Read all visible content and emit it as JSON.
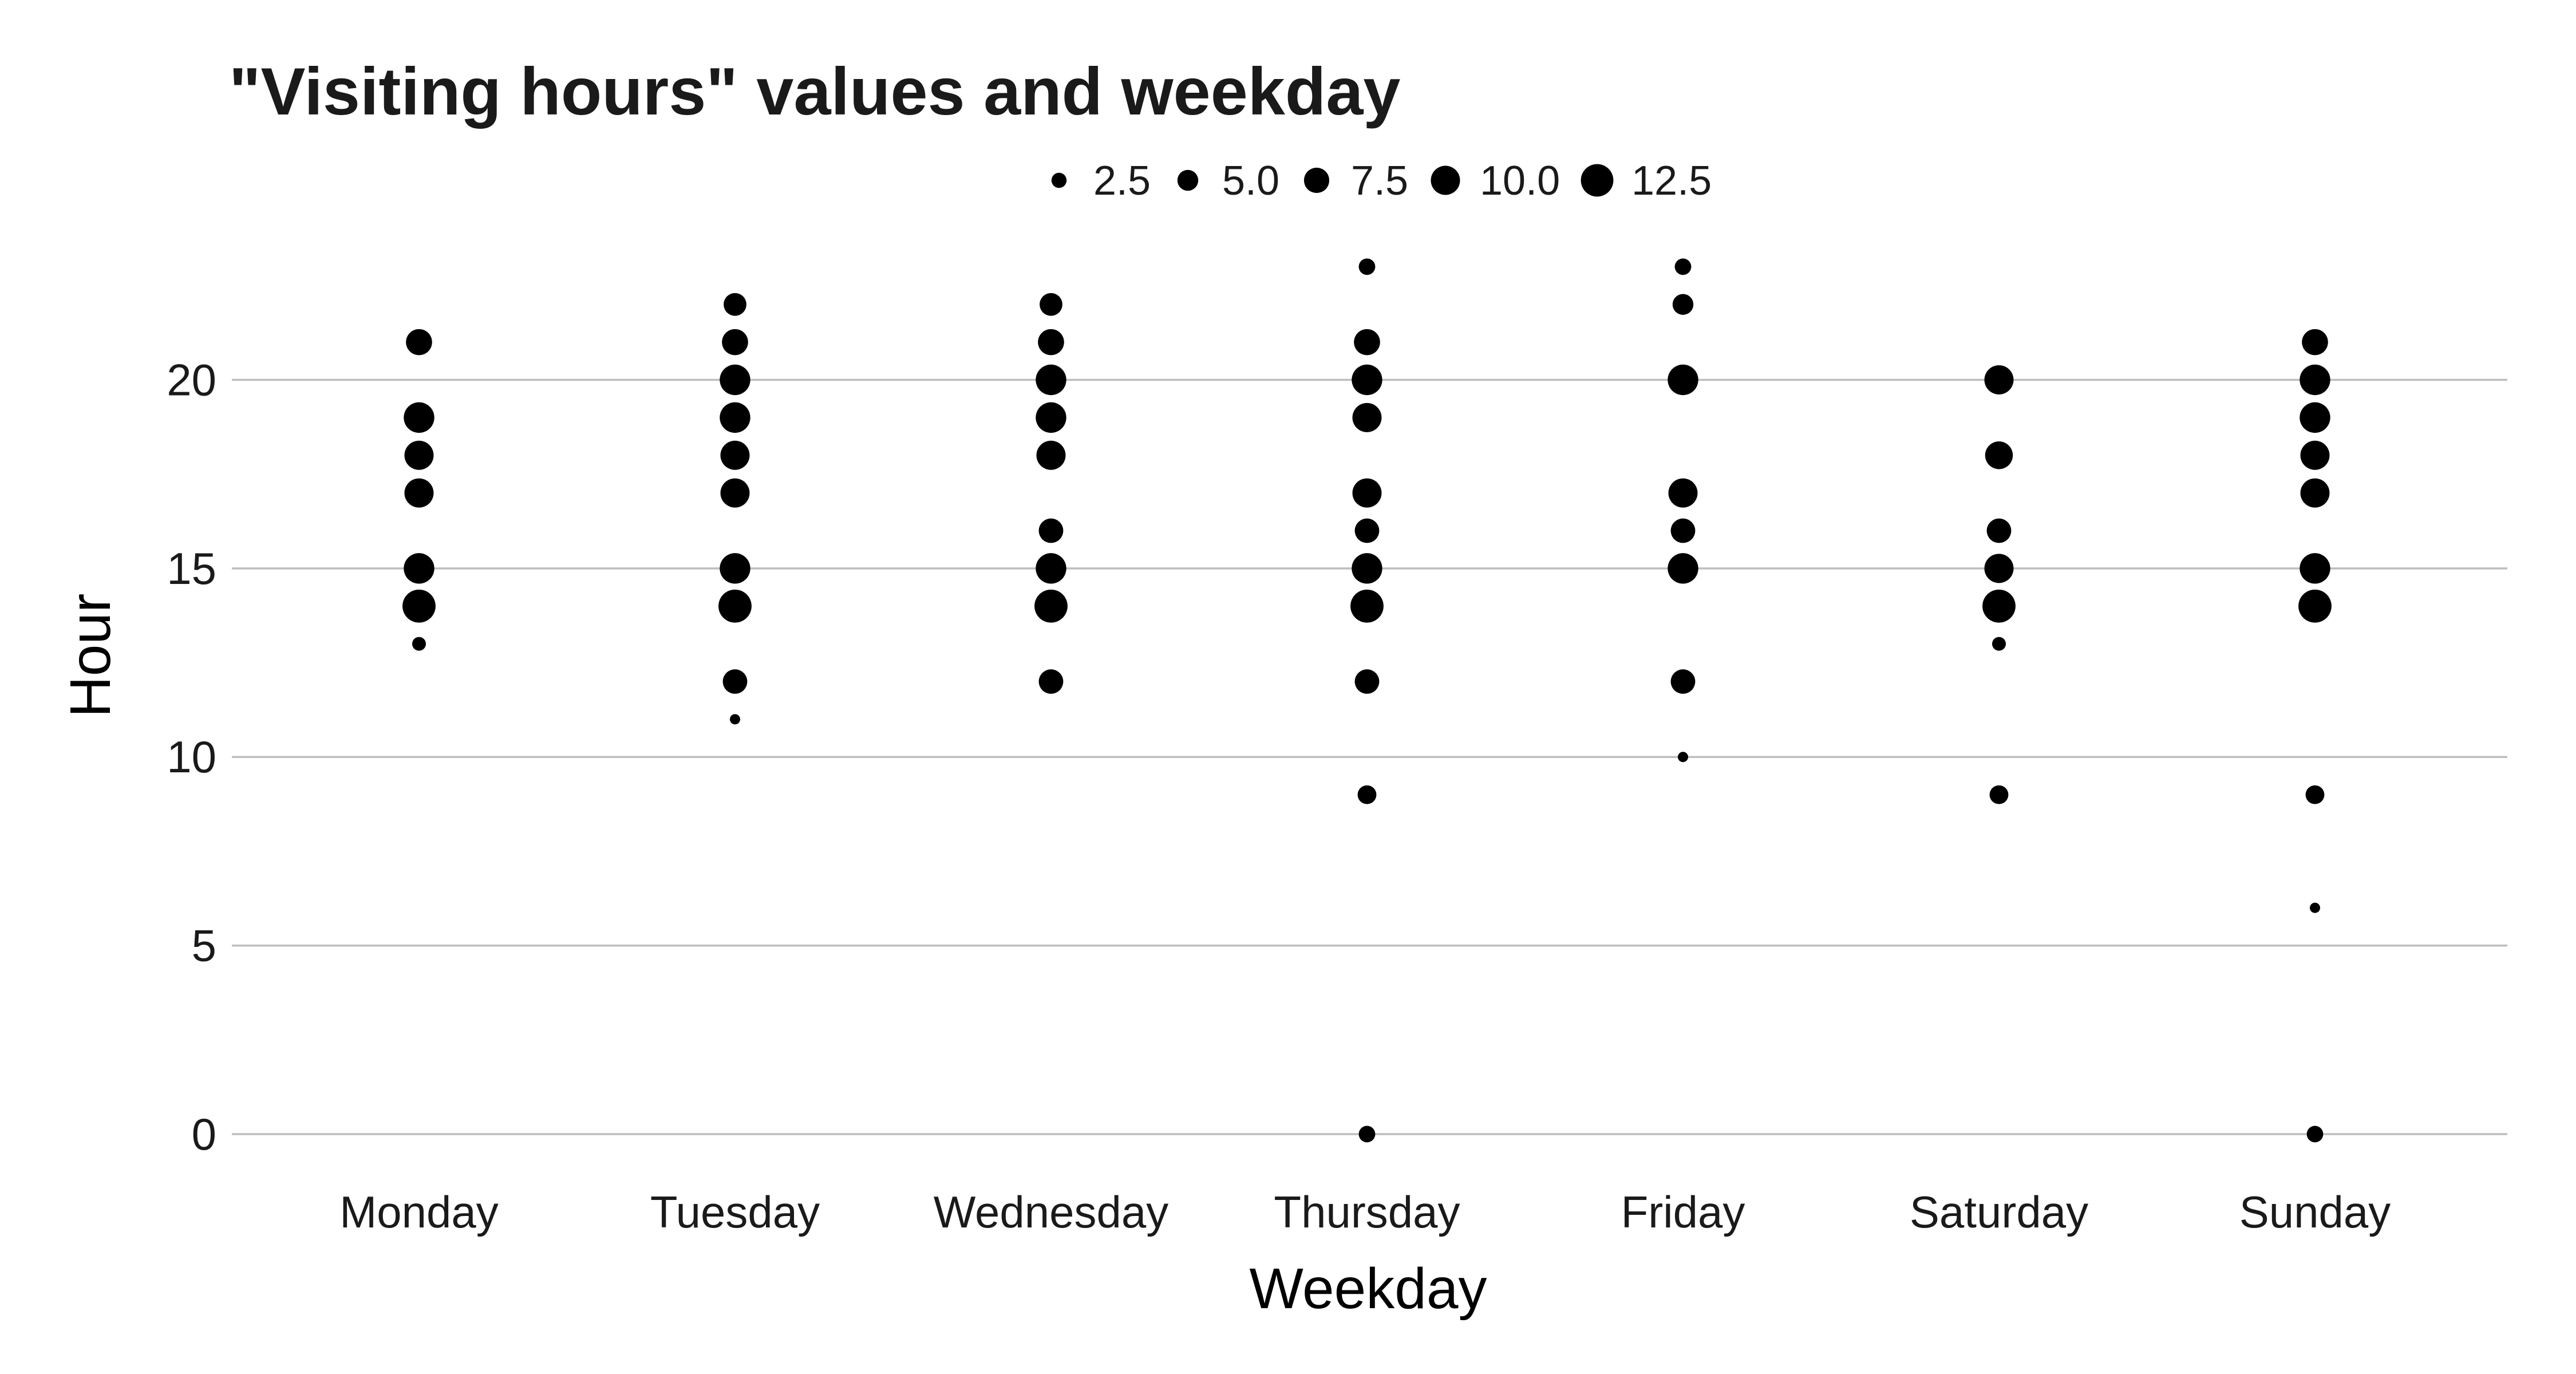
{
  "chart_data": {
    "type": "scatter",
    "title": "\"Visiting hours\" values and weekday",
    "xlabel": "Weekday",
    "ylabel": "Hour",
    "categories": [
      "Monday",
      "Tuesday",
      "Wednesday",
      "Thursday",
      "Friday",
      "Saturday",
      "Sunday"
    ],
    "ylim": [
      -1.2,
      24
    ],
    "yticks": [
      "0",
      "5",
      "10",
      "15",
      "20"
    ],
    "ytick_values": [
      0,
      5,
      10,
      15,
      20
    ],
    "grid": "horizontal major",
    "point_color": "#000000",
    "grid_color": "#bdbdbd",
    "legend": {
      "position": "top",
      "title": "",
      "entries": [
        {
          "label": "2.5",
          "value": 2.5
        },
        {
          "label": "5.0",
          "value": 5.0
        },
        {
          "label": "7.5",
          "value": 7.5
        },
        {
          "label": "10.0",
          "value": 10.0
        },
        {
          "label": "12.5",
          "value": 12.5
        }
      ]
    },
    "size_range": [
      1,
      14
    ],
    "points": [
      {
        "day": "Monday",
        "hour": 13,
        "count": 2
      },
      {
        "day": "Monday",
        "hour": 14,
        "count": 13
      },
      {
        "day": "Monday",
        "hour": 15,
        "count": 11
      },
      {
        "day": "Monday",
        "hour": 17,
        "count": 10
      },
      {
        "day": "Monday",
        "hour": 18,
        "count": 10
      },
      {
        "day": "Monday",
        "hour": 19,
        "count": 11
      },
      {
        "day": "Monday",
        "hour": 21,
        "count": 8
      },
      {
        "day": "Tuesday",
        "hour": 11,
        "count": 1
      },
      {
        "day": "Tuesday",
        "hour": 12,
        "count": 7
      },
      {
        "day": "Tuesday",
        "hour": 14,
        "count": 13
      },
      {
        "day": "Tuesday",
        "hour": 15,
        "count": 11
      },
      {
        "day": "Tuesday",
        "hour": 17,
        "count": 10
      },
      {
        "day": "Tuesday",
        "hour": 18,
        "count": 10
      },
      {
        "day": "Tuesday",
        "hour": 19,
        "count": 11
      },
      {
        "day": "Tuesday",
        "hour": 20,
        "count": 11
      },
      {
        "day": "Tuesday",
        "hour": 21,
        "count": 8
      },
      {
        "day": "Tuesday",
        "hour": 22,
        "count": 6
      },
      {
        "day": "Wednesday",
        "hour": 12,
        "count": 7
      },
      {
        "day": "Wednesday",
        "hour": 14,
        "count": 13
      },
      {
        "day": "Wednesday",
        "hour": 15,
        "count": 11
      },
      {
        "day": "Wednesday",
        "hour": 16,
        "count": 7
      },
      {
        "day": "Wednesday",
        "hour": 18,
        "count": 10
      },
      {
        "day": "Wednesday",
        "hour": 19,
        "count": 11
      },
      {
        "day": "Wednesday",
        "hour": 20,
        "count": 11
      },
      {
        "day": "Wednesday",
        "hour": 21,
        "count": 8
      },
      {
        "day": "Wednesday",
        "hour": 22,
        "count": 6
      },
      {
        "day": "Thursday",
        "hour": 0,
        "count": 3
      },
      {
        "day": "Thursday",
        "hour": 9,
        "count": 4
      },
      {
        "day": "Thursday",
        "hour": 12,
        "count": 7
      },
      {
        "day": "Thursday",
        "hour": 14,
        "count": 13
      },
      {
        "day": "Thursday",
        "hour": 15,
        "count": 11
      },
      {
        "day": "Thursday",
        "hour": 16,
        "count": 7
      },
      {
        "day": "Thursday",
        "hour": 17,
        "count": 10
      },
      {
        "day": "Thursday",
        "hour": 19,
        "count": 10
      },
      {
        "day": "Thursday",
        "hour": 20,
        "count": 11
      },
      {
        "day": "Thursday",
        "hour": 21,
        "count": 8
      },
      {
        "day": "Thursday",
        "hour": 23,
        "count": 3
      },
      {
        "day": "Friday",
        "hour": 10,
        "count": 1
      },
      {
        "day": "Friday",
        "hour": 12,
        "count": 7
      },
      {
        "day": "Friday",
        "hour": 15,
        "count": 11
      },
      {
        "day": "Friday",
        "hour": 16,
        "count": 7
      },
      {
        "day": "Friday",
        "hour": 17,
        "count": 10
      },
      {
        "day": "Friday",
        "hour": 20,
        "count": 11
      },
      {
        "day": "Friday",
        "hour": 22,
        "count": 5
      },
      {
        "day": "Friday",
        "hour": 23,
        "count": 3
      },
      {
        "day": "Saturday",
        "hour": 9,
        "count": 4
      },
      {
        "day": "Saturday",
        "hour": 13,
        "count": 2
      },
      {
        "day": "Saturday",
        "hour": 14,
        "count": 13
      },
      {
        "day": "Saturday",
        "hour": 15,
        "count": 10
      },
      {
        "day": "Saturday",
        "hour": 16,
        "count": 7
      },
      {
        "day": "Saturday",
        "hour": 18,
        "count": 9
      },
      {
        "day": "Saturday",
        "hour": 20,
        "count": 10
      },
      {
        "day": "Sunday",
        "hour": 0,
        "count": 3
      },
      {
        "day": "Sunday",
        "hour": 6,
        "count": 1
      },
      {
        "day": "Sunday",
        "hour": 9,
        "count": 4
      },
      {
        "day": "Sunday",
        "hour": 14,
        "count": 13
      },
      {
        "day": "Sunday",
        "hour": 15,
        "count": 11
      },
      {
        "day": "Sunday",
        "hour": 17,
        "count": 10
      },
      {
        "day": "Sunday",
        "hour": 18,
        "count": 10
      },
      {
        "day": "Sunday",
        "hour": 19,
        "count": 11
      },
      {
        "day": "Sunday",
        "hour": 20,
        "count": 11
      },
      {
        "day": "Sunday",
        "hour": 21,
        "count": 8
      }
    ]
  }
}
